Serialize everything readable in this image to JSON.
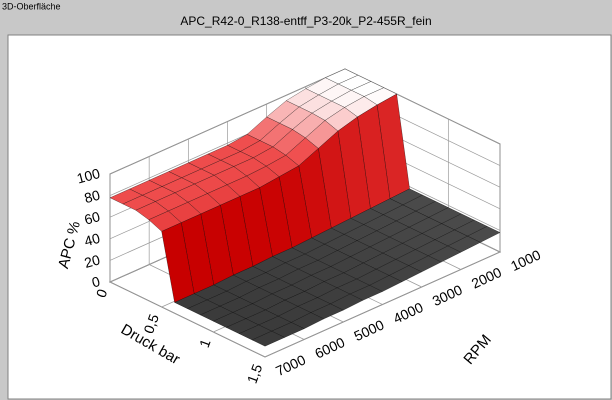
{
  "window": {
    "title": "3D-Oberfläche"
  },
  "chart_data": {
    "type": "surface3d",
    "title": "APC_R42-0_R138-entff_P3-20k_P2-455R_fein",
    "xlabel": "Druck bar",
    "ylabel": "RPM",
    "zlabel": "APC %",
    "xlim": [
      0,
      1.5
    ],
    "ylim": [
      1000,
      7000
    ],
    "zlim": [
      0,
      100
    ],
    "xticks": [
      0,
      {
        "value": 0.5,
        "label": "0,5"
      },
      1,
      {
        "value": 1.5,
        "label": "1,5"
      }
    ],
    "yticks": [
      1000,
      2000,
      3000,
      4000,
      5000,
      6000,
      7000
    ],
    "zticks": [
      0,
      20,
      40,
      60,
      80,
      100
    ],
    "colormap": [
      [
        0,
        "#262626"
      ],
      [
        25,
        "#5a5a5a"
      ],
      [
        40,
        "#c80000"
      ],
      [
        80,
        "#f05050"
      ],
      [
        100,
        "#ffffff"
      ]
    ],
    "mesh_color": "#000000",
    "x": [
      0,
      0.125,
      0.25,
      0.375,
      0.5,
      0.625,
      0.75,
      0.875,
      1,
      1.125,
      1.25,
      1.375,
      1.5
    ],
    "y": [
      1000,
      1500,
      2000,
      2500,
      3000,
      3500,
      4000,
      4500,
      5000,
      5500,
      6000,
      6500,
      7000
    ],
    "z": [
      [
        100,
        100,
        100,
        100,
        100,
        18,
        18,
        18,
        18,
        18,
        18,
        18,
        18
      ],
      [
        100,
        100,
        100,
        100,
        98,
        17,
        17,
        17,
        17,
        17,
        17,
        17,
        17
      ],
      [
        98,
        98,
        98,
        98,
        95,
        16,
        16,
        16,
        16,
        16,
        16,
        16,
        16
      ],
      [
        95,
        95,
        95,
        94,
        90,
        15,
        15,
        15,
        15,
        15,
        15,
        15,
        15
      ],
      [
        88,
        88,
        88,
        86,
        82,
        14,
        14,
        14,
        14,
        14,
        14,
        14,
        14
      ],
      [
        80,
        80,
        80,
        78,
        74,
        13,
        13,
        13,
        13,
        13,
        13,
        13,
        13
      ],
      [
        78,
        78,
        78,
        76,
        72,
        12,
        12,
        12,
        12,
        12,
        12,
        12,
        12
      ],
      [
        78,
        78,
        78,
        75,
        70,
        12,
        12,
        12,
        12,
        12,
        12,
        12,
        12
      ],
      [
        78,
        78,
        78,
        75,
        70,
        11,
        11,
        11,
        11,
        11,
        11,
        11,
        11
      ],
      [
        78,
        78,
        78,
        75,
        70,
        11,
        11,
        11,
        11,
        11,
        11,
        11,
        11
      ],
      [
        78,
        78,
        78,
        75,
        70,
        10,
        10,
        10,
        10,
        10,
        10,
        10,
        10
      ],
      [
        78,
        78,
        78,
        75,
        70,
        10,
        10,
        10,
        10,
        10,
        10,
        10,
        10
      ],
      [
        78,
        78,
        78,
        75,
        70,
        10,
        10,
        10,
        10,
        10,
        10,
        10,
        10
      ]
    ]
  }
}
